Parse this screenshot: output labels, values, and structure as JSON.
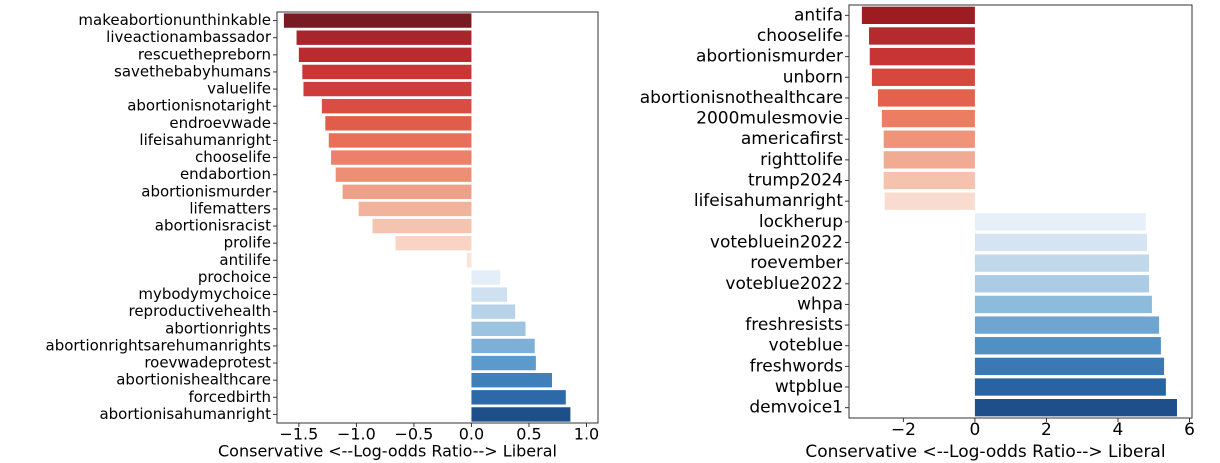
{
  "chart_data": [
    {
      "type": "bar",
      "orientation": "horizontal",
      "xlabel": "Conservative <--Log-odds Ratio--> Liberal",
      "categories": [
        "makeabortionunthinkable",
        "liveactionambassador",
        "rescuethepreborn",
        "savethebabyhumans",
        "valuelife",
        "abortionisnotaright",
        "endroevwade",
        "lifeisahumanright",
        "chooselife",
        "endabortion",
        "abortionismurder",
        "lifematters",
        "abortionisracist",
        "prolife",
        "antilife",
        "prochoice",
        "mybodymychoice",
        "reproductivehealth",
        "abortionrights",
        "abortionrightsarehumanrights",
        "roevwadeprotest",
        "abortionishealthcare",
        "forcedbirth",
        "abortionisahumanright"
      ],
      "values": [
        -1.63,
        -1.52,
        -1.5,
        -1.47,
        -1.46,
        -1.3,
        -1.27,
        -1.24,
        -1.22,
        -1.18,
        -1.12,
        -0.98,
        -0.86,
        -0.66,
        -0.04,
        0.25,
        0.31,
        0.38,
        0.47,
        0.55,
        0.56,
        0.7,
        0.82,
        0.86
      ],
      "colors": [
        "#781c24",
        "#a6262c",
        "#b92b30",
        "#c93636",
        "#cc3c3b",
        "#da4d41",
        "#e15d4b",
        "#e8705a",
        "#ec8068",
        "#ee8f75",
        "#efa088",
        "#f2b39c",
        "#f5c4b0",
        "#f9d4c5",
        "#fbe4da",
        "#e3eef8",
        "#cfe0f1",
        "#b7d3e9",
        "#9cc4e0",
        "#7cb0d8",
        "#5b9acb",
        "#3f80ba",
        "#2d68a7",
        "#1d4f8a"
      ],
      "xlim": [
        -1.69,
        1.1
      ],
      "xticks": [
        {
          "value": -1.5,
          "label": "−1.5"
        },
        {
          "value": -1.0,
          "label": "−1.0"
        },
        {
          "value": -0.5,
          "label": "−0.5"
        },
        {
          "value": 0,
          "label": "0.0"
        },
        0.5,
        {
          "value": 1,
          "label": "1.0"
        }
      ]
    },
    {
      "type": "bar",
      "orientation": "horizontal",
      "xlabel": "Conservative <--Log-odds Ratio--> Liberal",
      "categories": [
        "antifa",
        "chooselife",
        "abortionismurder",
        "unborn",
        "abortionisnothealthcare",
        "2000mulesmovie",
        "americafirst",
        "righttolife",
        "trump2024",
        "lifeisahumanright",
        "lockherup",
        "votebluein2022",
        "roevember",
        "voteblue2022",
        "whpa",
        "freshresists",
        "voteblue",
        "freshwords",
        "wtpblue",
        "demvoice1"
      ],
      "values": [
        -3.16,
        -2.96,
        -2.94,
        -2.88,
        -2.71,
        -2.6,
        -2.55,
        -2.55,
        -2.55,
        -2.52,
        4.78,
        4.81,
        4.87,
        4.87,
        4.95,
        5.15,
        5.2,
        5.29,
        5.34,
        5.65
      ],
      "colors": [
        "#9d1c22",
        "#b52a2e",
        "#c73434",
        "#d6473e",
        "#e4624d",
        "#ec7d62",
        "#ef9479",
        "#f1ab93",
        "#f4c2ad",
        "#f9dccf",
        "#e7f0f9",
        "#d5e4f2",
        "#c1d8eb",
        "#abcce4",
        "#8dbbdc",
        "#6ea6d1",
        "#5290c3",
        "#3a79b4",
        "#2a63a2",
        "#1e4f8b"
      ],
      "xlim": [
        -3.52,
        6.07
      ],
      "xticks": [
        {
          "value": -2,
          "label": "−2"
        },
        0,
        2,
        4,
        6
      ]
    }
  ]
}
